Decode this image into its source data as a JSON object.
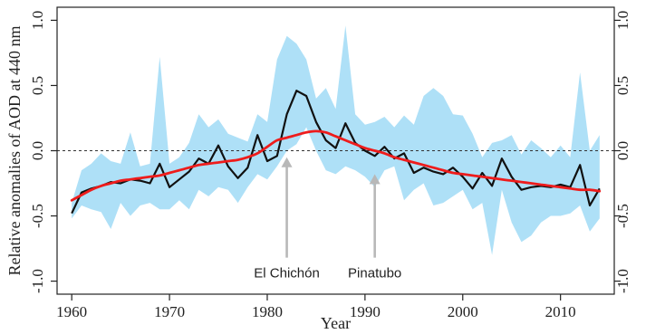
{
  "chart_data": {
    "type": "line",
    "xlabel": "Year",
    "ylabel": "Relative anomalies of AOD at 440 nm",
    "xlim": [
      1958.5,
      2015.5
    ],
    "ylim": [
      -1.1,
      1.1
    ],
    "x_ticks": [
      1960,
      1970,
      1980,
      1990,
      2000,
      2010
    ],
    "x_tick_labels": [
      "1960",
      "1970",
      "1980",
      "1990",
      "2000",
      "2010"
    ],
    "y_ticks": [
      -1.0,
      -0.5,
      0.0,
      0.5,
      1.0
    ],
    "y_tick_labels_left": [
      "-1.0",
      "-0.5",
      "0.0",
      "0.5",
      "1.0"
    ],
    "y_tick_labels_right": [
      "-1.0",
      "-0.5",
      "0.0",
      "0.5",
      "1.0"
    ],
    "zero_reference_line": true,
    "colors": {
      "band": "#aee0f7",
      "annual": "#111111",
      "trend": "#ee1c1c",
      "arrow": "#b8b8b8"
    },
    "years": [
      1960,
      1961,
      1962,
      1963,
      1964,
      1965,
      1966,
      1967,
      1968,
      1969,
      1970,
      1971,
      1972,
      1973,
      1974,
      1975,
      1976,
      1977,
      1978,
      1979,
      1980,
      1981,
      1982,
      1983,
      1984,
      1985,
      1986,
      1987,
      1988,
      1989,
      1990,
      1991,
      1992,
      1993,
      1994,
      1995,
      1996,
      1997,
      1998,
      1999,
      2000,
      2001,
      2002,
      2003,
      2004,
      2005,
      2006,
      2007,
      2008,
      2009,
      2010,
      2011,
      2012,
      2013,
      2014
    ],
    "series": [
      {
        "type": "band",
        "upper": [
          -0.4,
          -0.15,
          -0.1,
          -0.02,
          -0.08,
          -0.1,
          0.14,
          -0.12,
          -0.1,
          0.72,
          -0.1,
          -0.05,
          0.06,
          0.28,
          0.18,
          0.24,
          0.13,
          0.1,
          0.07,
          0.28,
          0.22,
          0.7,
          0.88,
          0.82,
          0.7,
          0.4,
          0.48,
          0.32,
          0.96,
          0.28,
          0.2,
          0.22,
          0.26,
          0.18,
          0.27,
          0.2,
          0.42,
          0.48,
          0.42,
          0.28,
          0.27,
          0.13,
          -0.05,
          0.06,
          0.08,
          0.12,
          -0.03,
          0.08,
          0.02,
          -0.05,
          0.04,
          -0.05,
          0.6,
          0.0,
          0.12
        ],
        "lower": [
          -0.52,
          -0.42,
          -0.45,
          -0.47,
          -0.6,
          -0.4,
          -0.5,
          -0.42,
          -0.4,
          -0.45,
          -0.45,
          -0.38,
          -0.45,
          -0.3,
          -0.35,
          -0.28,
          -0.3,
          -0.4,
          -0.28,
          -0.18,
          -0.22,
          -0.12,
          0.0,
          0.05,
          0.18,
          0.0,
          -0.15,
          -0.18,
          -0.12,
          -0.15,
          -0.2,
          -0.28,
          -0.15,
          -0.12,
          -0.38,
          -0.3,
          -0.25,
          -0.42,
          -0.4,
          -0.35,
          -0.3,
          -0.45,
          -0.4,
          -0.8,
          -0.3,
          -0.55,
          -0.7,
          -0.65,
          -0.55,
          -0.5,
          -0.5,
          -0.48,
          -0.42,
          -0.62,
          -0.52
        ]
      },
      {
        "type": "line",
        "values": [
          -0.48,
          -0.32,
          -0.29,
          -0.27,
          -0.24,
          -0.25,
          -0.22,
          -0.23,
          -0.25,
          -0.1,
          -0.28,
          -0.22,
          -0.16,
          -0.06,
          -0.1,
          0.04,
          -0.12,
          -0.21,
          -0.13,
          0.12,
          -0.08,
          -0.04,
          0.28,
          0.46,
          0.42,
          0.22,
          0.08,
          0.02,
          0.21,
          0.06,
          0.0,
          -0.04,
          0.03,
          -0.06,
          -0.02,
          -0.17,
          -0.13,
          -0.16,
          -0.18,
          -0.13,
          -0.2,
          -0.29,
          -0.17,
          -0.27,
          -0.06,
          -0.2,
          -0.3,
          -0.28,
          -0.27,
          -0.28,
          -0.26,
          -0.28,
          -0.11,
          -0.42,
          -0.29
        ]
      },
      {
        "type": "line",
        "smooth": true,
        "values": [
          -0.38,
          -0.34,
          -0.3,
          -0.27,
          -0.25,
          -0.23,
          -0.22,
          -0.21,
          -0.2,
          -0.19,
          -0.17,
          -0.15,
          -0.13,
          -0.11,
          -0.1,
          -0.09,
          -0.08,
          -0.07,
          -0.05,
          -0.02,
          0.03,
          0.08,
          0.1,
          0.12,
          0.14,
          0.15,
          0.14,
          0.11,
          0.08,
          0.05,
          0.02,
          0.0,
          -0.02,
          -0.05,
          -0.07,
          -0.09,
          -0.11,
          -0.13,
          -0.15,
          -0.17,
          -0.18,
          -0.19,
          -0.2,
          -0.21,
          -0.22,
          -0.23,
          -0.24,
          -0.25,
          -0.26,
          -0.27,
          -0.28,
          -0.29,
          -0.3,
          -0.3,
          -0.31
        ]
      }
    ],
    "annotations": [
      {
        "text": "El Chichón",
        "x": 1982,
        "arrow_from_y": -0.82,
        "arrow_to_y": -0.05
      },
      {
        "text": "Pinatubo",
        "x": 1991,
        "arrow_from_y": -0.82,
        "arrow_to_y": -0.18
      }
    ]
  }
}
